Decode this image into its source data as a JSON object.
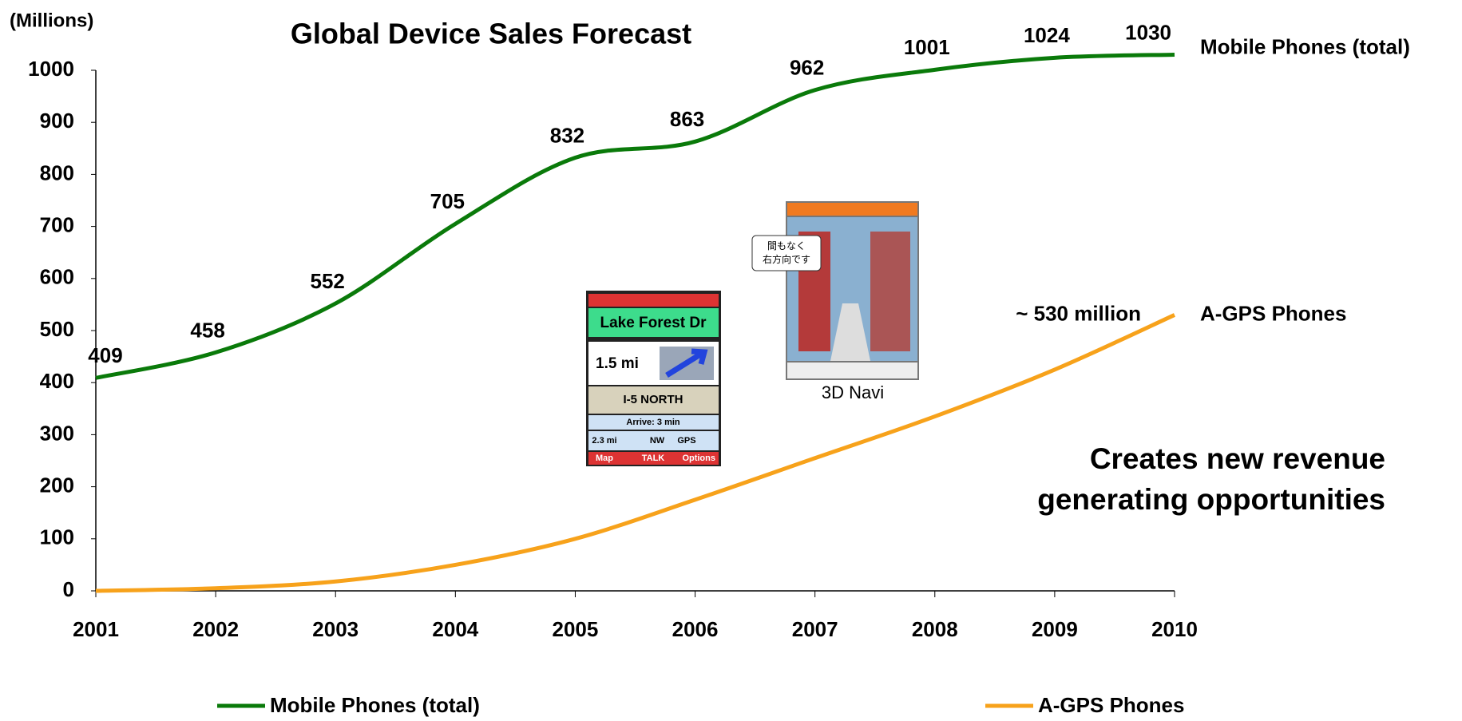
{
  "chart_data": {
    "type": "line",
    "title": "Global Device Sales Forecast",
    "y_axis_label": "(Millions)",
    "x": [
      2001,
      2002,
      2003,
      2004,
      2005,
      2006,
      2007,
      2008,
      2009,
      2010
    ],
    "xlim": [
      2001,
      2010
    ],
    "xticks": [
      2001,
      2002,
      2003,
      2004,
      2005,
      2006,
      2007,
      2008,
      2009,
      2010
    ],
    "ylim": [
      0,
      1000
    ],
    "yticks": [
      0,
      100,
      200,
      300,
      400,
      500,
      600,
      700,
      800,
      900,
      1000
    ],
    "grid": false,
    "legend": "bottom",
    "series": [
      {
        "name": "Mobile Phones (total)",
        "color": "#0a7a0a",
        "values": [
          409,
          458,
          552,
          705,
          832,
          863,
          962,
          1001,
          1024,
          1030
        ]
      },
      {
        "name": "A-GPS Phones",
        "color": "#f7a21b",
        "values": [
          0,
          5,
          18,
          50,
          100,
          175,
          255,
          335,
          425,
          530
        ],
        "end_label": {
          "value": 530,
          "label": "~ 530 million"
        }
      }
    ],
    "annotation": [
      "Creates new revenue",
      "generating opportunities"
    ]
  },
  "images": {
    "nav": {
      "street": "Lake Forest Dr",
      "distance": "1.5 mi",
      "road": "I-5 NORTH",
      "arrive": "Arrive: 3 min",
      "cells": [
        "2.3 mi",
        "NW",
        "GPS"
      ],
      "softkeys": [
        "Map",
        "TALK",
        "Options"
      ]
    },
    "navi3d": {
      "bubble": [
        "間もなく",
        "右方向です"
      ],
      "caption": "3D Navi"
    }
  }
}
